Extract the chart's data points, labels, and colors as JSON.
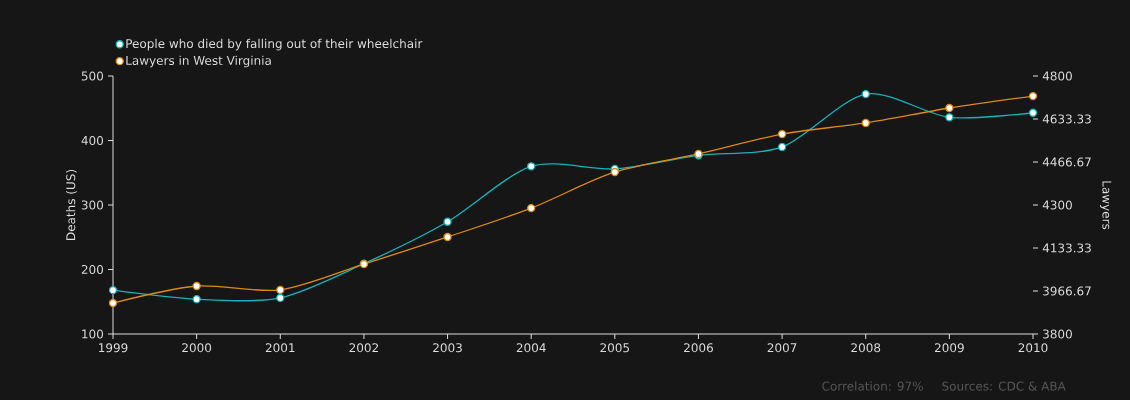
{
  "chart_data": {
    "type": "line",
    "ylabel": "Deaths (US)",
    "y2label": "Lawyers",
    "x": [
      1999,
      2000,
      2001,
      2002,
      2003,
      2004,
      2005,
      2006,
      2007,
      2008,
      2009,
      2010
    ],
    "xlim": [
      1999,
      2010
    ],
    "xticks": [
      1999,
      2000,
      2001,
      2002,
      2003,
      2004,
      2005,
      2006,
      2007,
      2008,
      2009,
      2010
    ],
    "ylim": [
      100,
      500
    ],
    "yticks": [
      100,
      200,
      300,
      400,
      500
    ],
    "y2lim": [
      3800,
      4800
    ],
    "y2ticks": [
      3800,
      3966.67,
      4133.33,
      4300,
      4466.67,
      4633.33,
      4800
    ],
    "series": [
      {
        "name": "People who died by falling out of their wheelchair",
        "color": "#17b3bd",
        "values": [
          168,
          154,
          156,
          209,
          274,
          360,
          356,
          377,
          390,
          472,
          436,
          443
        ]
      },
      {
        "name": "Lawyers in West Virginia",
        "color": "#e08a10",
        "axis": "y2",
        "values": [
          3920,
          3986,
          3971,
          4071,
          4176,
          4288,
          4428,
          4498,
          4575,
          4618,
          4676,
          4722
        ]
      }
    ],
    "marker": "circle",
    "legend": "top left",
    "annotations": [
      "Correlation: 97%",
      "Sources: CDC & ABA"
    ]
  }
}
